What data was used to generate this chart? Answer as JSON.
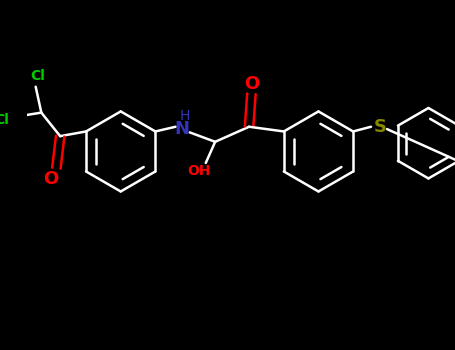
{
  "background_color": "#000000",
  "bond_color": "#ffffff",
  "bond_width": 1.8,
  "cl_color": "#00cc00",
  "o_color": "#ff0000",
  "n_color": "#3333bb",
  "s_color": "#888800",
  "fig_width": 4.55,
  "fig_height": 3.5,
  "dpi": 100,
  "xlim": [
    0,
    9.1
  ],
  "ylim": [
    0,
    7.0
  ]
}
